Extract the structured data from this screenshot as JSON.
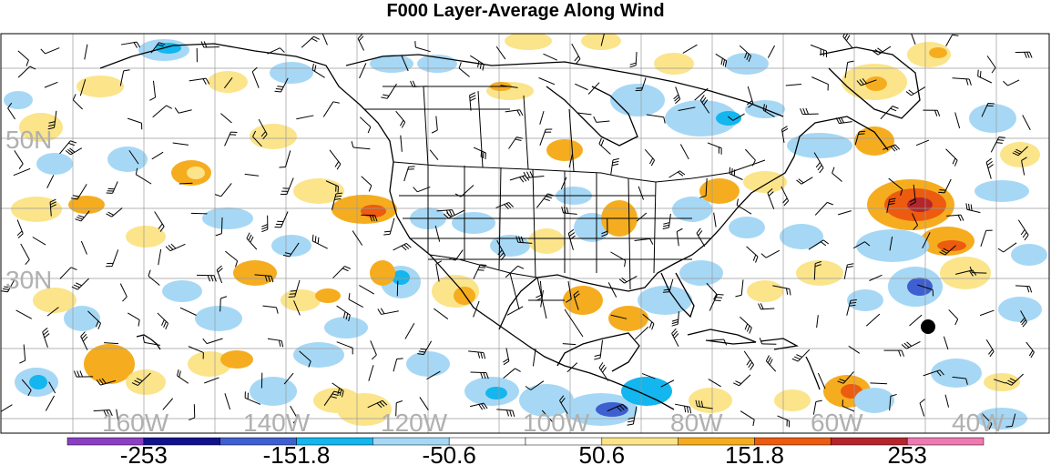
{
  "title": "F000 Layer-Average Along Wind",
  "map": {
    "lat_labels": [
      "50N",
      "30N"
    ],
    "lon_labels": [
      "160W",
      "140W",
      "120W",
      "100W",
      "80W",
      "60W",
      "40W"
    ],
    "grid": true,
    "feature_marker": "black-dot"
  },
  "colorbar": {
    "tick_labels": [
      "-253",
      "-151.8",
      "-50.6",
      "50.6",
      "151.8",
      "253"
    ],
    "colors": [
      "#8a3fc4",
      "#12128c",
      "#3e5fcf",
      "#13b6ee",
      "#a6d8f5",
      "#ffffff",
      "#ffffff",
      "#fbe48a",
      "#f5ad1f",
      "#ec5b0f",
      "#b4262b",
      "#ef7ab2"
    ]
  }
}
